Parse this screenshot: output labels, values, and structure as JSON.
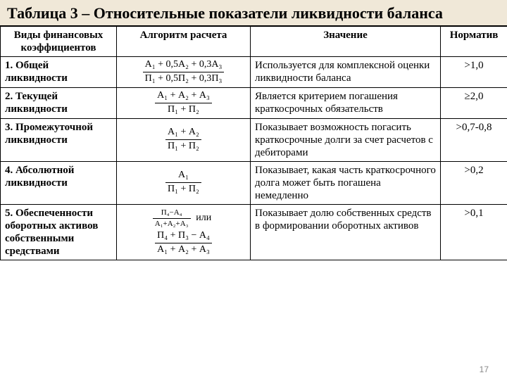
{
  "title": "Таблица 3 – Относительные показатели ликвидности баланса",
  "headers": {
    "col1": "Виды финансовых коэффициентов",
    "col2": "Алгоритм расчета",
    "col3": "Значение",
    "col4": "Норматив"
  },
  "rows": [
    {
      "type": "1. Общей ликвидности",
      "formula": {
        "kind": "frac",
        "num": "А₁ + 0,5А₂ + 0,3А₃",
        "den": "П₁ + 0,5П₂ + 0,3П₃"
      },
      "meaning": "Используется для комплексной оценки ликвидности баланса",
      "norm": ">1,0"
    },
    {
      "type": "2. Текущей ликвидности",
      "formula": {
        "kind": "frac",
        "num": "А₁ + А₂ + А₃",
        "den": "П₁ + П₂"
      },
      "meaning": "Является критерием погашения краткосрочных обязательств",
      "norm": "≥2,0"
    },
    {
      "type": "3. Промежуточной ликвидности",
      "formula": {
        "kind": "frac",
        "num": "А₁ + А₂",
        "den": "П₁ + П₂"
      },
      "meaning": "Показывает возможность погасить краткосрочные долги за счет расчетов с дебиторами",
      "norm": ">0,7-0,8"
    },
    {
      "type": "4. Абсолютной ликвидности",
      "formula": {
        "kind": "frac",
        "num": "А₁",
        "den": "П₁ + П₂"
      },
      "meaning": "Показывает, какая часть краткосрочного долга может быть погашена немедленно",
      "norm": ">0,2"
    },
    {
      "type": "5. Обеспеченности оборотных активов собственными средствами",
      "formula": {
        "kind": "double",
        "first": {
          "num": "П₄−А₄",
          "den": "А₁+А₂+А₃"
        },
        "ili": "или",
        "second": {
          "num": "П₄ + П₃ − А₄",
          "den": "А₁ + А₂ + А₃"
        }
      },
      "meaning": "Показывает долю собственных средств в формировании оборотных активов",
      "norm": ">0,1"
    }
  ],
  "pageNumber": "17",
  "style": {
    "title_bg": "#f0e8d8",
    "title_fontsize": 22,
    "body_fontsize": 15,
    "border_color": "#000000",
    "page_bg": "#ffffff",
    "pagenum_color": "#888888",
    "font_family": "Times New Roman"
  }
}
